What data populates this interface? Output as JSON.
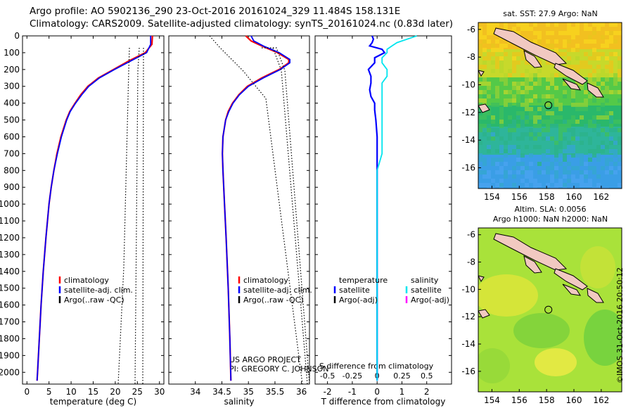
{
  "titles": {
    "line1": "Argo profile: AO 5902136_290 23-Oct-2016 20161024_329 11.484S 158.131E",
    "line2": "Climatology: CARS2009. Satellite-adjusted climatology: synTS_20161024.nc (0.83d later)"
  },
  "colors": {
    "climatology": "#ff0000",
    "satellite": "#0000ff",
    "argo": "#000000",
    "salinity_satellite": "#00e5ee",
    "salinity_argo": "#ff00ff"
  },
  "credits": {
    "project": "US ARGO PROJECT",
    "pi": "PI: GREGORY C. JOHNSON",
    "stamp": "©IMOS 31-Oct-2016 20:50:12"
  },
  "maps": {
    "sst_title": "sat. SST: 27.9 Argo: NaN",
    "sla_title1": "Altim. SLA: 0.0056",
    "sla_title2": "Argo h1000: NaN h2000: NaN",
    "lon_ticks": [
      "154",
      "156",
      "158",
      "160",
      "162"
    ],
    "lat_ticks": [
      "-6",
      "-8",
      "-10",
      "-12",
      "-14",
      "-16"
    ],
    "argo_position": {
      "lon": 158.131,
      "lat": -11.484
    },
    "lon_range": [
      153,
      163.5
    ],
    "lat_range": [
      -17.5,
      -5.5
    ]
  },
  "chart_data": [
    {
      "type": "line",
      "id": "temperature",
      "xlabel": "temperature (deg C)",
      "ylabel": "",
      "xlim": [
        -1,
        31
      ],
      "ylim": [
        2070,
        0
      ],
      "xticks": [
        0,
        5,
        10,
        15,
        20,
        25,
        30
      ],
      "yticks": [
        0,
        100,
        200,
        300,
        400,
        500,
        600,
        700,
        800,
        900,
        1000,
        1100,
        1200,
        1300,
        1400,
        1500,
        1600,
        1700,
        1800,
        1900,
        2000
      ],
      "legend": [
        "climatology",
        "satellite-adj. clim.",
        "Argo(..raw -QC)"
      ],
      "series": [
        {
          "name": "climatology",
          "depth": [
            0,
            50,
            100,
            150,
            200,
            250,
            300,
            350,
            400,
            450,
            500,
            600,
            700,
            800,
            900,
            1000,
            1200,
            1400,
            1600,
            1800,
            2000,
            2050
          ],
          "values": [
            28.4,
            28.3,
            26.8,
            23.0,
            19.6,
            16.2,
            13.8,
            12.2,
            10.9,
            9.7,
            8.9,
            7.7,
            6.8,
            6.1,
            5.5,
            5.0,
            4.3,
            3.7,
            3.2,
            2.8,
            2.4,
            2.3
          ]
        },
        {
          "name": "satellite-adj. clim.",
          "depth": [
            0,
            50,
            100,
            150,
            200,
            250,
            300,
            350,
            400,
            450,
            500,
            600,
            700,
            800,
            900,
            1000,
            1200,
            1400,
            1600,
            1800,
            2000,
            2050
          ],
          "values": [
            28.0,
            28.0,
            27.1,
            23.4,
            19.8,
            16.4,
            14.0,
            12.4,
            11.0,
            9.8,
            9.0,
            7.8,
            6.9,
            6.1,
            5.5,
            5.0,
            4.3,
            3.7,
            3.2,
            2.8,
            2.4,
            2.3
          ]
        }
      ]
    },
    {
      "type": "line",
      "id": "salinity",
      "xlabel": "salinity",
      "ylabel": "",
      "xlim": [
        33.5,
        36.15
      ],
      "ylim": [
        2070,
        0
      ],
      "xticks": [
        34,
        34.5,
        35,
        35.5,
        36
      ],
      "legend": [
        "climatology",
        "satellite-adj. clim.",
        "Argo(..raw -QC)"
      ],
      "series": [
        {
          "name": "climatology",
          "depth": [
            0,
            30,
            60,
            100,
            140,
            160,
            200,
            250,
            300,
            350,
            400,
            450,
            500,
            600,
            700,
            800,
            1000,
            1200,
            1500,
            1800,
            2050
          ],
          "values": [
            34.95,
            35.05,
            35.25,
            35.55,
            35.76,
            35.76,
            35.58,
            35.25,
            34.98,
            34.82,
            34.7,
            34.62,
            34.57,
            34.52,
            34.51,
            34.52,
            34.55,
            34.58,
            34.62,
            34.65,
            34.67
          ]
        },
        {
          "name": "satellite-adj. clim.",
          "depth": [
            0,
            30,
            60,
            100,
            140,
            160,
            200,
            250,
            300,
            350,
            400,
            450,
            500,
            600,
            700,
            800,
            1000,
            1200,
            1500,
            1800,
            2050
          ],
          "values": [
            35.05,
            35.1,
            35.28,
            35.58,
            35.78,
            35.78,
            35.6,
            35.28,
            35.0,
            34.83,
            34.71,
            34.63,
            34.57,
            34.52,
            34.51,
            34.52,
            34.55,
            34.58,
            34.62,
            34.65,
            34.67
          ]
        }
      ]
    },
    {
      "type": "line",
      "id": "difference",
      "xlabel": "T difference from climatology",
      "xlabel2": "S difference from climatology",
      "xlim": [
        -2.5,
        3
      ],
      "xticks": [
        -2,
        -1,
        0,
        1,
        2
      ],
      "xticks_s": [
        "-0.5",
        "-0.25",
        "0",
        "0.25",
        "0.5"
      ],
      "ylim": [
        2070,
        0
      ],
      "legend_left": [
        "temperature",
        "satellite",
        "Argo(-adj)"
      ],
      "legend_right": [
        "salinity",
        "satellite",
        "Argo(-adj)"
      ],
      "series": [
        {
          "name": "satellite",
          "depth": [
            0,
            20,
            40,
            60,
            80,
            100,
            130,
            160,
            200,
            240,
            280,
            320,
            360,
            400,
            440,
            500,
            600,
            700,
            800,
            1000,
            1200,
            1500,
            2050
          ],
          "values": [
            -0.2,
            -0.15,
            -0.2,
            -0.3,
            0.2,
            0.3,
            -0.1,
            -0.1,
            -0.35,
            -0.25,
            -0.25,
            -0.3,
            -0.25,
            -0.1,
            -0.1,
            -0.05,
            0.0,
            0.0,
            0.0,
            0.0,
            0.0,
            0.0,
            0.0
          ]
        },
        {
          "name": "salinity satellite",
          "depth": [
            0,
            20,
            40,
            60,
            80,
            100,
            130,
            160,
            200,
            240,
            280,
            320,
            360,
            400,
            440,
            500,
            600,
            700,
            800,
            1000,
            1200,
            1500,
            2050
          ],
          "values": [
            0.4,
            0.3,
            0.2,
            0.15,
            0.1,
            0.1,
            0.05,
            0.05,
            0.1,
            0.1,
            0.05,
            0.05,
            0.05,
            0.05,
            0.05,
            0.05,
            0.05,
            0.05,
            0.0,
            0.0,
            0.0,
            0.0,
            0.0
          ]
        }
      ]
    }
  ]
}
